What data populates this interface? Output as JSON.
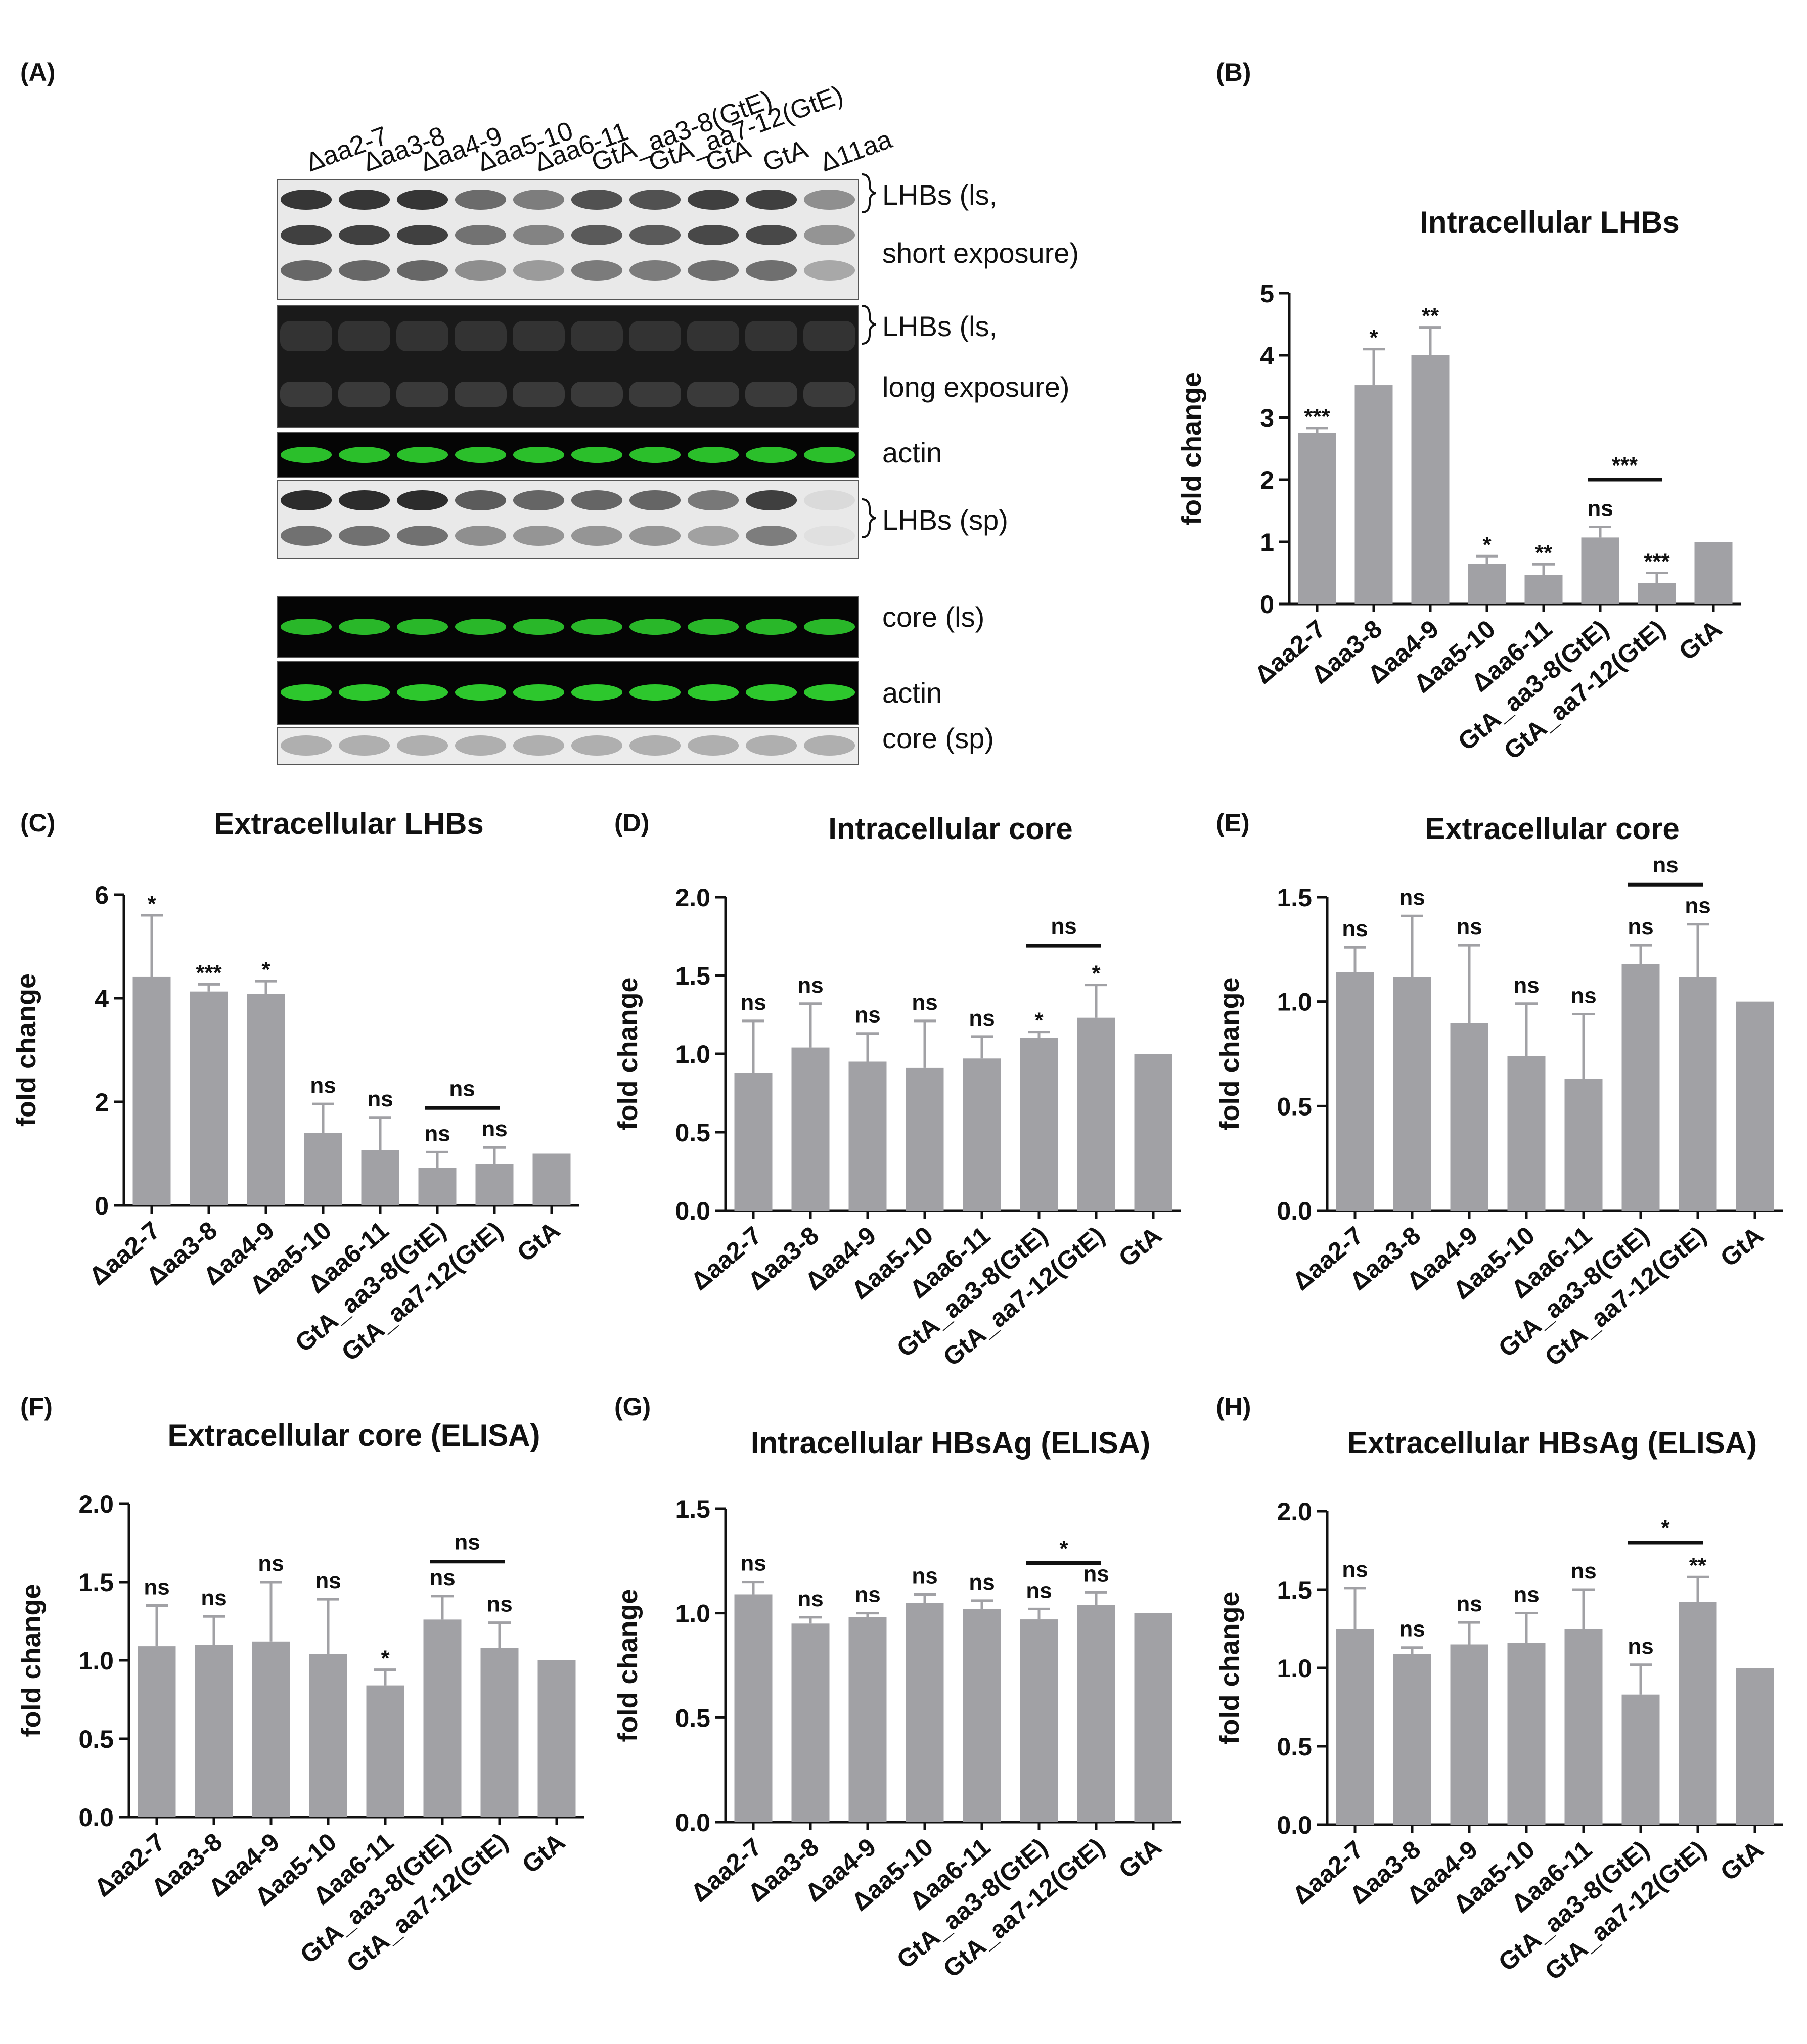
{
  "panel_labels": [
    "(A)",
    "(B)",
    "(C)",
    "(D)",
    "(E)",
    "(F)",
    "(G)",
    "(H)"
  ],
  "blot": {
    "lane_labels": [
      "Δaa2-7",
      "Δaa3-8",
      "Δaa4-9",
      "Δaa5-10",
      "Δaa6-11",
      "GtA_aa3-8(GtE)",
      "GtA_aa7-12(GtE)",
      "GtA",
      "GtA",
      "Δ11aa"
    ],
    "rows": [
      {
        "label": [
          "LHBs (ls,",
          "short exposure)"
        ],
        "brace": true
      },
      {
        "label": [
          "LHBs (ls,",
          "long exposure)"
        ],
        "brace": true
      },
      {
        "label": [
          "actin"
        ],
        "brace": false
      },
      {
        "label": [
          "LHBs (sp)"
        ],
        "brace": true
      },
      {
        "label": [
          "core (ls)"
        ],
        "brace": false
      },
      {
        "label": [
          "actin"
        ],
        "brace": false
      },
      {
        "label": [
          "core (sp)"
        ],
        "brace": false
      }
    ]
  },
  "colors": {
    "bar": "#a1a1a5",
    "axis": "#111111",
    "green": "#2fd22f",
    "blot_bg": "#e9e9e9"
  },
  "chart_data": [
    {
      "panel": "(B)",
      "type": "bar",
      "title": "Intracellular LHBs",
      "ylabel": "fold change",
      "categories": [
        "Δaa2-7",
        "Δaa3-8",
        "Δaa4-9",
        "Δaa5-10",
        "Δaa6-11",
        "GtA_aa3-8(GtE)",
        "GtA_aa7-12(GtE)",
        "GtA"
      ],
      "values": [
        2.75,
        3.52,
        4.0,
        0.65,
        0.47,
        1.07,
        0.34,
        1.0
      ],
      "errors": [
        0.08,
        0.58,
        0.45,
        0.12,
        0.17,
        0.17,
        0.16,
        null
      ],
      "marks": [
        "***",
        "*",
        "**",
        "*",
        "**",
        "ns",
        "***",
        ""
      ],
      "ylim": [
        0,
        5
      ],
      "yticks": [
        "0",
        "1",
        "2",
        "3",
        "4",
        "5"
      ],
      "bracket": {
        "from": 5,
        "to": 6,
        "at": 2.0,
        "label": "***"
      }
    },
    {
      "panel": "(C)",
      "type": "bar",
      "title": "Extracellular LHBs",
      "ylabel": "fold change",
      "categories": [
        "Δaa2-7",
        "Δaa3-8",
        "Δaa4-9",
        "Δaa5-10",
        "Δaa6-11",
        "GtA_aa3-8(GtE)",
        "GtA_aa7-12(GtE)",
        "GtA"
      ],
      "values": [
        4.42,
        4.13,
        4.08,
        1.4,
        1.07,
        0.73,
        0.8,
        1.0
      ],
      "errors": [
        1.18,
        0.14,
        0.25,
        0.56,
        0.63,
        0.3,
        0.32,
        null
      ],
      "marks": [
        "*",
        "***",
        "*",
        "ns",
        "ns",
        "ns",
        "ns",
        ""
      ],
      "ylim": [
        0,
        6
      ],
      "yticks": [
        "0",
        "2",
        "4",
        "6"
      ],
      "bracket": {
        "from": 5,
        "to": 6,
        "at": 1.88,
        "label": "ns"
      }
    },
    {
      "panel": "(D)",
      "type": "bar",
      "title": "Intracellular core",
      "ylabel": "fold change",
      "categories": [
        "Δaa2-7",
        "Δaa3-8",
        "Δaa4-9",
        "Δaa5-10",
        "Δaa6-11",
        "GtA_aa3-8(GtE)",
        "GtA_aa7-12(GtE)",
        "GtA"
      ],
      "values": [
        0.88,
        1.04,
        0.95,
        0.91,
        0.97,
        1.1,
        1.23,
        1.0
      ],
      "errors": [
        0.33,
        0.28,
        0.18,
        0.3,
        0.14,
        0.04,
        0.21,
        null
      ],
      "marks": [
        "ns",
        "ns",
        "ns",
        "ns",
        "ns",
        "*",
        "*",
        ""
      ],
      "ylim": [
        0,
        2
      ],
      "yticks": [
        "0.0",
        "0.5",
        "1.0",
        "1.5",
        "2.0"
      ],
      "bracket": {
        "from": 5,
        "to": 6,
        "at": 1.69,
        "label": "ns"
      }
    },
    {
      "panel": "(E)",
      "type": "bar",
      "title": "Extracellular core",
      "ylabel": "fold change",
      "categories": [
        "Δaa2-7",
        "Δaa3-8",
        "Δaa4-9",
        "Δaa5-10",
        "Δaa6-11",
        "GtA_aa3-8(GtE)",
        "GtA_aa7-12(GtE)",
        "GtA"
      ],
      "values": [
        1.14,
        1.12,
        0.9,
        0.74,
        0.63,
        1.18,
        1.12,
        1.0
      ],
      "errors": [
        0.12,
        0.29,
        0.37,
        0.25,
        0.31,
        0.09,
        0.25,
        null
      ],
      "marks": [
        "ns",
        "ns",
        "ns",
        "ns",
        "ns",
        "ns",
        "ns",
        ""
      ],
      "ylim": [
        0,
        1.5
      ],
      "yticks": [
        "0.0",
        "0.5",
        "1.0",
        "1.5"
      ],
      "bracket": {
        "from": 5,
        "to": 6,
        "at": 1.56,
        "label": "ns"
      }
    },
    {
      "panel": "(F)",
      "type": "bar",
      "title": "Extracellular core (ELISA)",
      "ylabel": "fold change",
      "categories": [
        "Δaa2-7",
        "Δaa3-8",
        "Δaa4-9",
        "Δaa5-10",
        "Δaa6-11",
        "GtA_aa3-8(GtE)",
        "GtA_aa7-12(GtE)",
        "GtA"
      ],
      "values": [
        1.09,
        1.1,
        1.12,
        1.04,
        0.84,
        1.26,
        1.08,
        1.0
      ],
      "errors": [
        0.26,
        0.18,
        0.38,
        0.35,
        0.1,
        0.15,
        0.16,
        null
      ],
      "marks": [
        "ns",
        "ns",
        "ns",
        "ns",
        "*",
        "ns",
        "ns",
        ""
      ],
      "ylim": [
        0,
        2
      ],
      "yticks": [
        "0.0",
        "0.5",
        "1.0",
        "1.5",
        "2.0"
      ],
      "bracket": {
        "from": 5,
        "to": 6,
        "at": 1.63,
        "label": "ns"
      }
    },
    {
      "panel": "(G)",
      "type": "bar",
      "title": "Intracellular HBsAg (ELISA)",
      "ylabel": "fold change",
      "categories": [
        "Δaa2-7",
        "Δaa3-8",
        "Δaa4-9",
        "Δaa5-10",
        "Δaa6-11",
        "GtA_aa3-8(GtE)",
        "GtA_aa7-12(GtE)",
        "GtA"
      ],
      "values": [
        1.09,
        0.95,
        0.98,
        1.05,
        1.02,
        0.97,
        1.04,
        1.0
      ],
      "errors": [
        0.06,
        0.03,
        0.02,
        0.04,
        0.04,
        0.05,
        0.06,
        null
      ],
      "marks": [
        "ns",
        "ns",
        "ns",
        "ns",
        "ns",
        "ns",
        "ns",
        ""
      ],
      "ylim": [
        0,
        1.5
      ],
      "yticks": [
        "0.0",
        "0.5",
        "1.0",
        "1.5"
      ],
      "bracket": {
        "from": 5,
        "to": 6,
        "at": 1.24,
        "label": "*"
      }
    },
    {
      "panel": "(H)",
      "type": "bar",
      "title": "Extracellular HBsAg (ELISA)",
      "ylabel": "fold change",
      "categories": [
        "Δaa2-7",
        "Δaa3-8",
        "Δaa4-9",
        "Δaa5-10",
        "Δaa6-11",
        "GtA_aa3-8(GtE)",
        "GtA_aa7-12(GtE)",
        "GtA"
      ],
      "values": [
        1.25,
        1.09,
        1.15,
        1.16,
        1.25,
        0.83,
        1.42,
        1.0
      ],
      "errors": [
        0.26,
        0.04,
        0.14,
        0.19,
        0.25,
        0.19,
        0.16,
        null
      ],
      "marks": [
        "ns",
        "ns",
        "ns",
        "ns",
        "ns",
        "ns",
        "**",
        ""
      ],
      "ylim": [
        0,
        2
      ],
      "yticks": [
        "0.0",
        "0.5",
        "1.0",
        "1.5",
        "2.0"
      ],
      "bracket": {
        "from": 5,
        "to": 6,
        "at": 1.8,
        "label": "*"
      }
    }
  ]
}
